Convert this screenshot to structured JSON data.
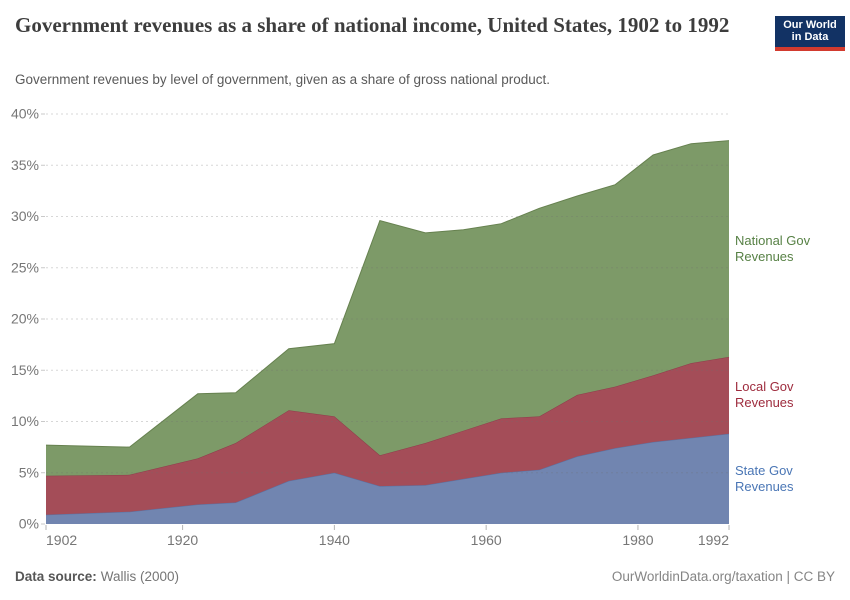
{
  "header": {
    "title": "Government revenues as a share of national income, United States, 1902 to 1992",
    "subtitle": "Government revenues by level of government, given as a share of gross national product.",
    "logo": {
      "line1": "Our World",
      "line2": "in Data",
      "bg": "#123264",
      "stripe": "#d23a2e"
    }
  },
  "chart_data": {
    "type": "area",
    "stacked": true,
    "title": "Government revenues as a share of national income, United States, 1902 to 1992",
    "x": [
      1902,
      1913,
      1922,
      1927,
      1934,
      1940,
      1946,
      1952,
      1957,
      1962,
      1967,
      1972,
      1977,
      1982,
      1987,
      1992
    ],
    "series": [
      {
        "name": "State Gov Revenues",
        "values": [
          0.9,
          1.2,
          1.9,
          2.1,
          4.2,
          5.0,
          3.7,
          3.8,
          4.4,
          5.0,
          5.3,
          6.6,
          7.4,
          8.0,
          8.4,
          8.8
        ],
        "color": "#7185b0",
        "edge": "#5a71a2",
        "label_color": "#4a76b5"
      },
      {
        "name": "Local Gov Revenues",
        "values": [
          3.8,
          3.6,
          4.5,
          5.8,
          6.9,
          5.5,
          3.0,
          4.1,
          4.7,
          5.3,
          5.2,
          6.0,
          6.0,
          6.5,
          7.3,
          7.5
        ],
        "color": "#a44d58",
        "edge": "#8e3d4b",
        "label_color": "#9e2b3d"
      },
      {
        "name": "National Gov Revenues",
        "values": [
          3.0,
          2.7,
          6.3,
          4.9,
          6.0,
          7.1,
          22.9,
          20.5,
          19.6,
          19.0,
          20.3,
          19.4,
          19.7,
          21.5,
          21.4,
          21.1
        ],
        "color": "#7d9a68",
        "edge": "#66814f",
        "label_color": "#578145"
      }
    ],
    "ylim": [
      0,
      40
    ],
    "yticks": [
      0,
      5,
      10,
      15,
      20,
      25,
      30,
      35,
      40
    ],
    "ytick_suffix": "%",
    "xticks": [
      1902,
      1920,
      1940,
      1960,
      1980,
      1992
    ],
    "grid": true,
    "legend_position": "right-labels",
    "xlabel": "",
    "ylabel": ""
  },
  "footer": {
    "source_label": "Data source:",
    "source_value": "Wallis (2000)",
    "credit": "OurWorldinData.org/taxation | CC BY"
  }
}
